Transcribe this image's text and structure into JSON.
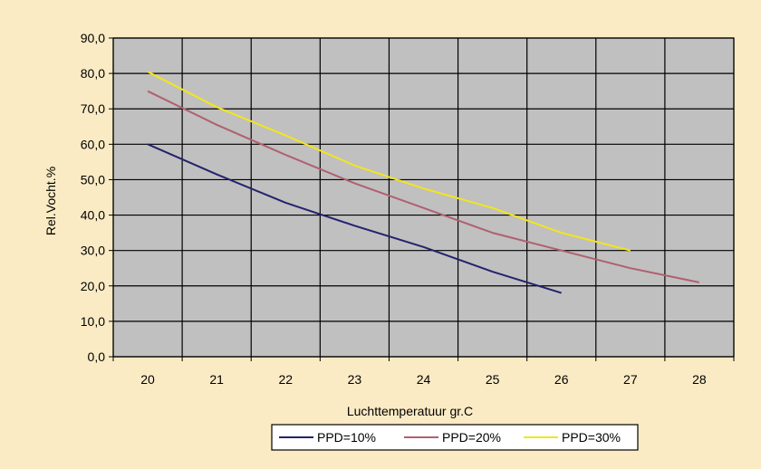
{
  "chart_data": {
    "type": "line",
    "title": "",
    "xlabel": "Luchttemperatuur gr.C",
    "ylabel": "Rel.Vocht.%",
    "x_categories": [
      "20",
      "21",
      "22",
      "23",
      "24",
      "25",
      "26",
      "27",
      "28"
    ],
    "y_ticks": [
      "0,0",
      "10,0",
      "20,0",
      "30,0",
      "40,0",
      "50,0",
      "60,0",
      "70,0",
      "80,0",
      "90,0"
    ],
    "ylim": [
      0,
      90
    ],
    "grid": true,
    "legend_position": "bottom",
    "colors": {
      "page_background": "#fbebc5",
      "plot_background": "#c0c0c0",
      "gridline": "#000000"
    },
    "series": [
      {
        "name": "PPD=10%",
        "color": "#23236e",
        "x": [
          20,
          21,
          22,
          23,
          24,
          25,
          26
        ],
        "y": [
          60.0,
          51.5,
          43.5,
          37.0,
          31.0,
          24.0,
          18.0
        ]
      },
      {
        "name": "PPD=20%",
        "color": "#b06070",
        "x": [
          20,
          21,
          22,
          23,
          24,
          25,
          26,
          27,
          28
        ],
        "y": [
          75.0,
          65.5,
          57.0,
          49.0,
          42.0,
          35.0,
          30.0,
          25.0,
          21.0
        ]
      },
      {
        "name": "PPD=30%",
        "color": "#f2e61c",
        "x": [
          20,
          21,
          22,
          23,
          24,
          25,
          26,
          27
        ],
        "y": [
          80.5,
          70.5,
          62.5,
          54.0,
          47.5,
          42.0,
          35.0,
          30.0
        ]
      }
    ]
  }
}
